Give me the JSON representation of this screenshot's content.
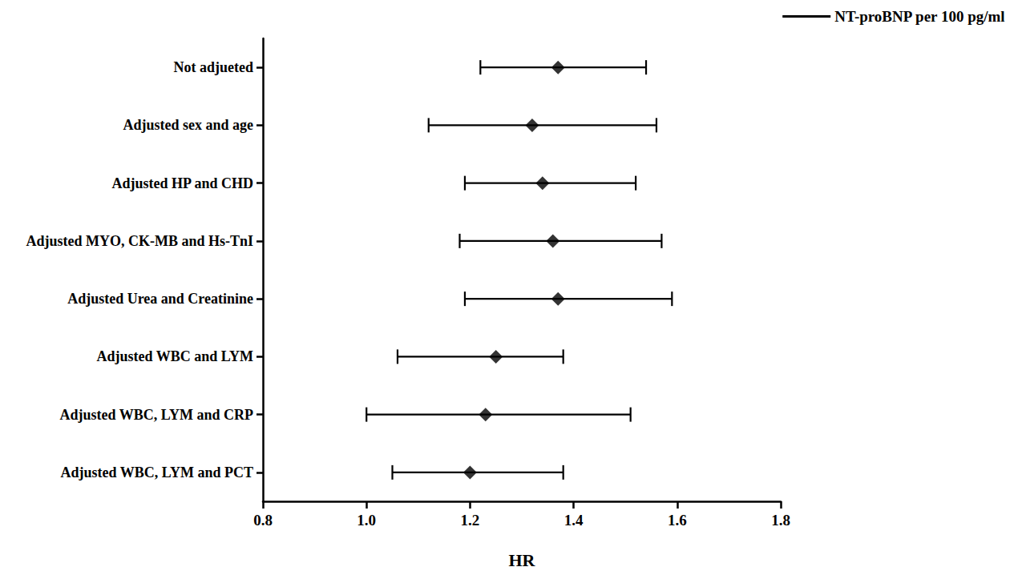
{
  "chart_data": {
    "type": "forest",
    "x_label": "HR",
    "categories": [
      "Not adjueted",
      "Adjusted sex and age",
      "Adjusted HP and CHD",
      "Adjusted MYO, CK-MB and Hs-TnI",
      "Adjusted Urea and Creatinine",
      "Adjusted WBC and LYM",
      "Adjusted WBC, LYM and CRP",
      "Adjusted WBC, LYM and PCT"
    ],
    "series": [
      {
        "name": "NT-proBNP per 100 pg/ml",
        "color": "#000000",
        "marker": "diamond",
        "values": [
          1.37,
          1.32,
          1.34,
          1.36,
          1.37,
          1.25,
          1.23,
          1.2
        ],
        "lower": [
          1.22,
          1.12,
          1.19,
          1.18,
          1.19,
          1.06,
          1.0,
          1.05
        ],
        "upper": [
          1.54,
          1.56,
          1.52,
          1.57,
          1.59,
          1.38,
          1.51,
          1.38
        ]
      }
    ],
    "xlim": [
      0.8,
      1.8
    ],
    "xticks": [
      0.8,
      {
        "value": 1,
        "label": "1.0"
      },
      1.2,
      1.4,
      1.6,
      1.8
    ],
    "legend": "top-right",
    "grid": false
  }
}
